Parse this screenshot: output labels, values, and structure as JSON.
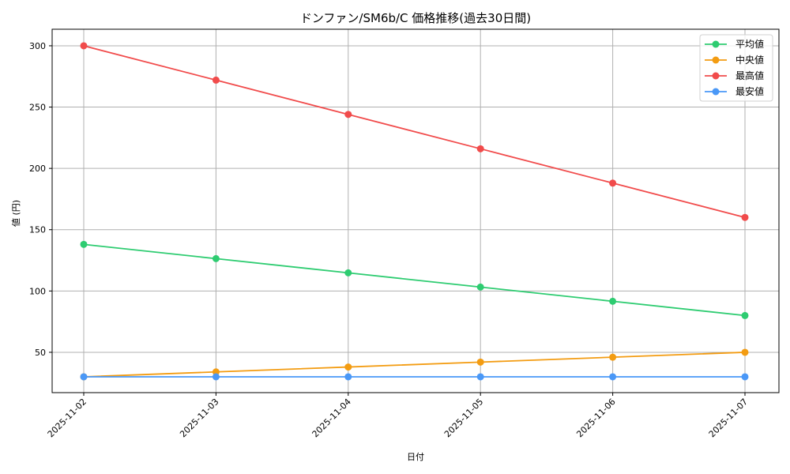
{
  "chart_data": {
    "type": "line",
    "title": "ドンファン/SM6b/C 価格推移(過去30日間)",
    "xlabel": "日付",
    "ylabel": "値 (円)",
    "categories": [
      "2025-11-02",
      "2025-11-03",
      "2025-11-04",
      "2025-11-05",
      "2025-11-06",
      "2025-11-07"
    ],
    "series": [
      {
        "name": "平均値",
        "color": "#2ecc71",
        "values": [
          138,
          126.4,
          114.8,
          103.2,
          91.6,
          80
        ]
      },
      {
        "name": "中央値",
        "color": "#f39c12",
        "values": [
          30,
          34,
          38,
          42,
          46,
          50
        ]
      },
      {
        "name": "最高値",
        "color": "#f14b4b",
        "values": [
          300,
          272,
          244,
          216,
          188,
          160
        ]
      },
      {
        "name": "最安値",
        "color": "#4a98f7",
        "values": [
          30,
          30,
          30,
          30,
          30,
          30
        ]
      }
    ],
    "yticks": [
      50,
      100,
      150,
      200,
      250,
      300
    ],
    "ylim": [
      17.1,
      313.5
    ],
    "grid": true,
    "legend_position": "upper right",
    "xtick_rotation": 45
  }
}
